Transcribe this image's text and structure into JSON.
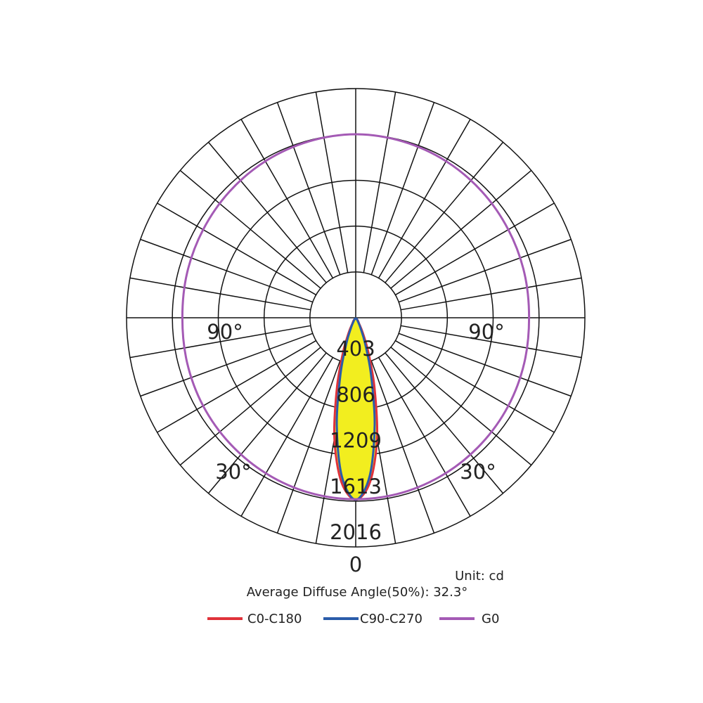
{
  "chart_data": {
    "type": "polar",
    "rlim": [
      0,
      2016
    ],
    "rticks": [
      403,
      806,
      1209,
      1613,
      2016
    ],
    "thetaticks": [
      {
        "value": -90,
        "label": "90°"
      },
      {
        "value": -30,
        "label": "30°"
      },
      {
        "value": 0,
        "label": "0"
      },
      {
        "value": 30,
        "label": "30°"
      },
      {
        "value": 90,
        "label": "90°"
      }
    ],
    "unit": "Unit: cd",
    "note": "Average Diffuse Angle(50%): 32.3°",
    "fill_color": "#f2ee1f",
    "series": [
      {
        "name": "C0-C180",
        "color": "#e0323a",
        "theta": [
          -40,
          -30,
          -25,
          -20,
          -15,
          -10,
          -5,
          0,
          5,
          10,
          15,
          20,
          25,
          30,
          40
        ],
        "values": [
          20,
          60,
          150,
          330,
          640,
          1080,
          1450,
          1600,
          1450,
          1080,
          640,
          330,
          150,
          60,
          20
        ]
      },
      {
        "name": "C90-C270",
        "color": "#2a5caa",
        "theta": [
          -40,
          -30,
          -25,
          -20,
          -15,
          -10,
          -5,
          0,
          5,
          10,
          15,
          20,
          25,
          30,
          40
        ],
        "values": [
          12,
          40,
          100,
          240,
          520,
          960,
          1400,
          1600,
          1400,
          960,
          520,
          240,
          100,
          40,
          12
        ]
      },
      {
        "name": "G0",
        "color": "#a45ab5",
        "theta": [
          -180,
          -165,
          -150,
          -135,
          -120,
          -105,
          -90,
          -75,
          -60,
          -45,
          -30,
          -15,
          0,
          15,
          30,
          45,
          60,
          75,
          90,
          105,
          120,
          135,
          150,
          165
        ],
        "values": [
          1614,
          1605,
          1590,
          1570,
          1550,
          1535,
          1525,
          1535,
          1550,
          1565,
          1580,
          1592,
          1596,
          1592,
          1580,
          1565,
          1550,
          1535,
          1525,
          1535,
          1550,
          1570,
          1590,
          1605
        ]
      }
    ]
  }
}
